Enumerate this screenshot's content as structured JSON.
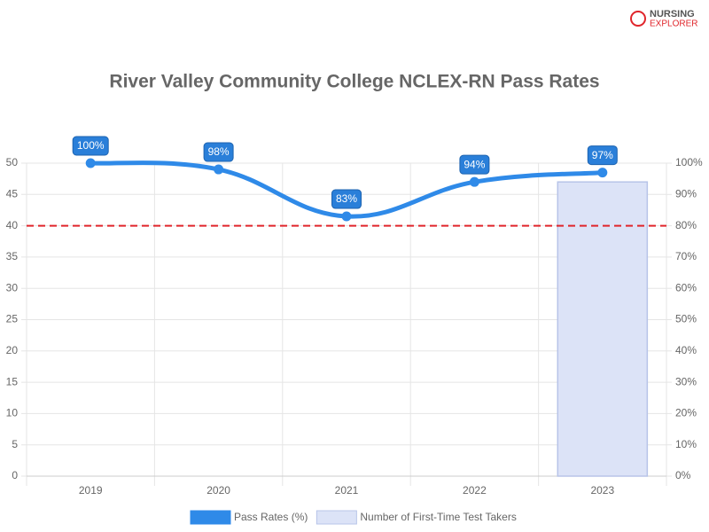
{
  "brand": {
    "line1": "NURSING",
    "line2": "EXPLORER"
  },
  "chart_data": {
    "type": "bar-line",
    "title": "River Valley Community College NCLEX-RN Pass Rates",
    "categories": [
      "2019",
      "2020",
      "2021",
      "2022",
      "2023"
    ],
    "series": [
      {
        "name": "Pass Rates (%)",
        "type": "line",
        "axis": "y2",
        "color": "#2f8ae8",
        "values": [
          100,
          98,
          83,
          94,
          97
        ],
        "value_labels": [
          "100%",
          "98%",
          "83%",
          "94%",
          "97%"
        ]
      },
      {
        "name": "Number of First-Time Test Takers",
        "type": "bar",
        "axis": "y",
        "color": "#dce3f7",
        "values": [
          null,
          null,
          null,
          null,
          47
        ]
      }
    ],
    "threshold": {
      "value": 80,
      "axis": "y2",
      "color": "#e0252b"
    },
    "ylim": [
      0,
      50
    ],
    "yticks": [
      0,
      5,
      10,
      15,
      20,
      25,
      30,
      35,
      40,
      45,
      50
    ],
    "y2lim": [
      0,
      100
    ],
    "y2ticks": [
      {
        "value": 0,
        "label": "0%"
      },
      {
        "value": 10,
        "label": "10%"
      },
      {
        "value": 20,
        "label": "20%"
      },
      {
        "value": 30,
        "label": "30%"
      },
      {
        "value": 40,
        "label": "40%"
      },
      {
        "value": 50,
        "label": "50%"
      },
      {
        "value": 60,
        "label": "60%"
      },
      {
        "value": 70,
        "label": "70%"
      },
      {
        "value": 80,
        "label": "80%"
      },
      {
        "value": 90,
        "label": "90%"
      },
      {
        "value": 100,
        "label": "100%"
      }
    ],
    "grid": true
  }
}
